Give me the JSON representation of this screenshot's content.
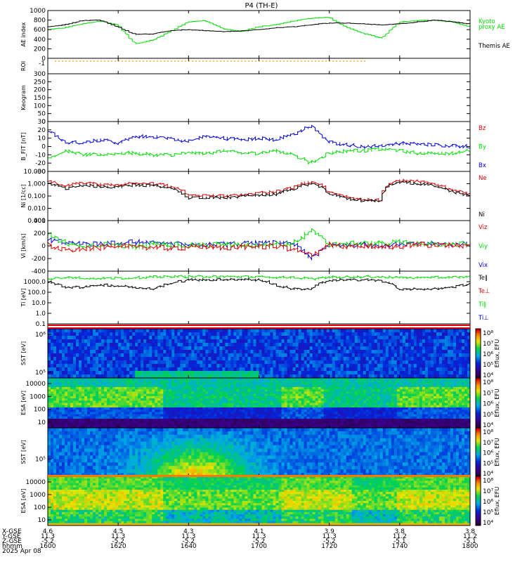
{
  "title": "P4 (TH-E)",
  "colors": {
    "black": "#000000",
    "green": "#00dd00",
    "blue": "#0000dd",
    "red": "#dd0000",
    "orange": "#ff9900"
  },
  "time_axis": {
    "row_labels": [
      "X-GSE",
      "Y-GSE",
      "Z-GSE",
      "hhmm",
      "2025 Apr 08"
    ],
    "ticks": [
      {
        "time": "1600",
        "x_gse": "4.6",
        "y_gse": "11.3",
        "z_gse": "-5.2"
      },
      {
        "time": "1620",
        "x_gse": "4.5",
        "y_gse": "11.3",
        "z_gse": "-5.2"
      },
      {
        "time": "1640",
        "x_gse": "4.3",
        "y_gse": "11.3",
        "z_gse": "-5.2"
      },
      {
        "time": "1700",
        "x_gse": "4.1",
        "y_gse": "11.3",
        "z_gse": "-5.2"
      },
      {
        "time": "1720",
        "x_gse": "3.9",
        "y_gse": "11.3",
        "z_gse": "-5.2"
      },
      {
        "time": "1740",
        "x_gse": "3.8",
        "y_gse": "11.2",
        "z_gse": "-5.1"
      },
      {
        "time": "1800",
        "x_gse": "3.8",
        "y_gse": "11.2",
        "z_gse": "-5.1"
      }
    ]
  },
  "chart_data": [
    {
      "type": "line",
      "panel": "ae",
      "ylabel": "AE index",
      "ylim": [
        0,
        1000
      ],
      "yticks": [
        "0",
        "200",
        "400",
        "600",
        "800",
        "1000"
      ],
      "legend": [
        {
          "label": "Kyoto",
          "color": "#00dd00"
        },
        {
          "label": "proxy AE",
          "color": "#00dd00"
        },
        {
          "label": "Themis AE",
          "color": "#000000"
        }
      ],
      "x": [
        1600,
        1605,
        1610,
        1615,
        1620,
        1625,
        1630,
        1635,
        1640,
        1645,
        1650,
        1655,
        1700,
        1705,
        1710,
        1715,
        1720,
        1725,
        1730,
        1735,
        1740,
        1745,
        1750,
        1755,
        1800
      ],
      "series": [
        {
          "name": "Kyoto",
          "color": "#00dd00",
          "values": [
            600,
            640,
            720,
            780,
            700,
            300,
            380,
            560,
            760,
            790,
            620,
            560,
            660,
            700,
            780,
            840,
            860,
            650,
            520,
            420,
            760,
            790,
            800,
            760,
            660
          ]
        },
        {
          "name": "Themis AE",
          "color": "#000000",
          "values": [
            660,
            700,
            790,
            800,
            660,
            500,
            510,
            580,
            600,
            580,
            560,
            570,
            600,
            640,
            660,
            700,
            740,
            740,
            720,
            700,
            720,
            760,
            800,
            770,
            720
          ]
        }
      ]
    },
    {
      "type": "line",
      "panel": "roi",
      "ylabel": "ROI",
      "yticks": [],
      "series": [
        {
          "name": "",
          "color": "#ff9900",
          "values": []
        }
      ]
    },
    {
      "type": "bar",
      "panel": "keogram",
      "ylabel": "Keogram",
      "ylim": [
        0,
        300
      ],
      "yticks": [
        "0",
        "50",
        "100",
        "150",
        "200",
        "250",
        "300"
      ],
      "series": []
    },
    {
      "type": "line",
      "panel": "bfield",
      "ylabel": "B_FIT [nT]",
      "ylim": [
        -30,
        30
      ],
      "yticks": [
        "-30",
        "-20",
        "-10",
        "0",
        "10",
        "20",
        "30"
      ],
      "legend": [
        {
          "label": "Bz",
          "color": "#dd0000"
        },
        {
          "label": "By",
          "color": "#00dd00"
        },
        {
          "label": "Bx",
          "color": "#0000dd"
        }
      ],
      "x": [
        1600,
        1605,
        1610,
        1615,
        1620,
        1625,
        1630,
        1635,
        1640,
        1645,
        1650,
        1655,
        1700,
        1705,
        1710,
        1715,
        1720,
        1725,
        1730,
        1735,
        1740,
        1745,
        1750,
        1755,
        1800
      ],
      "series": [
        {
          "name": "Bx",
          "color": "#0000dd",
          "values": [
            20,
            5,
            5,
            8,
            4,
            12,
            12,
            10,
            6,
            12,
            10,
            8,
            10,
            8,
            15,
            25,
            5,
            2,
            0,
            1,
            4,
            3,
            2,
            1,
            0
          ]
        },
        {
          "name": "By",
          "color": "#00dd00",
          "values": [
            -15,
            -5,
            -10,
            -10,
            -8,
            -8,
            -10,
            -10,
            -8,
            -8,
            -5,
            -8,
            -8,
            -5,
            -10,
            -20,
            -8,
            -5,
            -5,
            -3,
            -5,
            -8,
            -8,
            -8,
            -5
          ]
        }
      ]
    },
    {
      "type": "line",
      "panel": "density",
      "ylabel": "Ni [1/cc]",
      "ylim": [
        0.001,
        10
      ],
      "yscale": "log",
      "yticks": [
        "0.001",
        "0.010",
        "0.100",
        "1.000",
        "10.000"
      ],
      "legend": [
        {
          "label": "Ne",
          "color": "#dd0000"
        },
        {
          "label": "Ni",
          "color": "#000000"
        }
      ],
      "x": [
        1600,
        1605,
        1610,
        1615,
        1620,
        1625,
        1630,
        1635,
        1640,
        1645,
        1650,
        1655,
        1700,
        1705,
        1710,
        1715,
        1720,
        1725,
        1730,
        1735,
        1740,
        1745,
        1750,
        1755,
        1800
      ],
      "series": [
        {
          "name": "Ne",
          "color": "#dd0000",
          "values": [
            1.5,
            0.6,
            1.2,
            0.9,
            0.8,
            1.2,
            1.0,
            0.6,
            0.1,
            0.12,
            0.1,
            0.12,
            0.2,
            0.2,
            0.5,
            1.5,
            0.2,
            0.08,
            0.05,
            0.05,
            2.0,
            1.5,
            1.0,
            0.3,
            0.15
          ]
        },
        {
          "name": "Ni",
          "color": "#000000",
          "values": [
            1.0,
            0.4,
            0.8,
            0.6,
            0.5,
            0.8,
            0.7,
            0.4,
            0.07,
            0.08,
            0.07,
            0.09,
            0.12,
            0.14,
            0.35,
            1.0,
            0.14,
            0.06,
            0.04,
            0.04,
            1.4,
            1.0,
            0.7,
            0.2,
            0.1
          ]
        }
      ]
    },
    {
      "type": "line",
      "panel": "velocity",
      "ylabel": "Vi [km/s]",
      "ylim": [
        -400,
        400
      ],
      "yticks": [
        "-400",
        "-200",
        "0",
        "200",
        "400"
      ],
      "legend": [
        {
          "label": "Viz",
          "color": "#dd0000"
        },
        {
          "label": "Viy",
          "color": "#00dd00"
        },
        {
          "label": "Vix",
          "color": "#0000dd"
        }
      ],
      "x": [
        1600,
        1605,
        1610,
        1615,
        1620,
        1625,
        1630,
        1635,
        1640,
        1645,
        1650,
        1655,
        1700,
        1705,
        1710,
        1715,
        1720,
        1725,
        1730,
        1735,
        1740,
        1745,
        1750,
        1755,
        1800
      ],
      "series": [
        {
          "name": "Vix",
          "color": "#0000dd",
          "values": [
            100,
            50,
            20,
            30,
            40,
            60,
            40,
            20,
            30,
            10,
            20,
            30,
            40,
            40,
            30,
            -200,
            20,
            10,
            20,
            0,
            40,
            20,
            30,
            20,
            30
          ]
        },
        {
          "name": "Viy",
          "color": "#00dd00",
          "values": [
            200,
            50,
            -30,
            20,
            10,
            -20,
            30,
            20,
            0,
            20,
            20,
            10,
            10,
            20,
            50,
            250,
            20,
            30,
            40,
            40,
            60,
            40,
            20,
            30,
            20
          ]
        },
        {
          "name": "Viz",
          "color": "#dd0000",
          "values": [
            20,
            -80,
            -50,
            -30,
            20,
            -30,
            -20,
            -40,
            -20,
            -10,
            -30,
            -10,
            -20,
            0,
            -60,
            -150,
            20,
            -20,
            0,
            -10,
            -20,
            20,
            10,
            10,
            0
          ]
        }
      ]
    },
    {
      "type": "line",
      "panel": "temperature",
      "ylabel": "Ti [eV]",
      "ylim": [
        0.1,
        10000
      ],
      "yscale": "log",
      "yticks": [
        "0.1",
        "1.0",
        "10.0",
        "100.0",
        "1000.0"
      ],
      "legend": [
        {
          "label": "Te∥",
          "color": "#000000"
        },
        {
          "label": "Te⊥",
          "color": "#dd0000"
        },
        {
          "label": "Ti∥",
          "color": "#00dd00"
        },
        {
          "label": "Ti⊥",
          "color": "#0000dd"
        }
      ],
      "x": [
        1600,
        1605,
        1610,
        1615,
        1620,
        1625,
        1630,
        1635,
        1640,
        1645,
        1650,
        1655,
        1700,
        1705,
        1710,
        1715,
        1720,
        1725,
        1730,
        1735,
        1740,
        1745,
        1750,
        1755,
        1800
      ],
      "series": [
        {
          "name": "Ti∥",
          "color": "#00dd00",
          "values": [
            1800,
            2500,
            2300,
            2000,
            2200,
            2500,
            2800,
            3000,
            3200,
            3000,
            3200,
            3000,
            2800,
            2600,
            2500,
            1800,
            2600,
            2800,
            3000,
            3000,
            2400,
            2400,
            2500,
            2600,
            2800
          ]
        },
        {
          "name": "Te∥",
          "color": "#000000",
          "values": [
            1000,
            300,
            300,
            500,
            400,
            300,
            200,
            600,
            1500,
            1500,
            1700,
            1600,
            1500,
            400,
            200,
            200,
            1200,
            1500,
            1500,
            1200,
            150,
            200,
            200,
            300,
            600
          ]
        }
      ]
    },
    {
      "type": "heatmap",
      "panel": "sst_ion",
      "ylabel": "SST [eV]",
      "yticks": [
        "10⁵",
        "10⁶"
      ],
      "colorbar": {
        "label": "Eflux, EFU",
        "ticks": [
          "10⁴",
          "10⁵",
          "10⁶",
          "10⁷",
          "10⁸"
        ]
      }
    },
    {
      "type": "heatmap",
      "panel": "esa_ion",
      "ylabel": "ESA [eV]",
      "yticks": [
        "10",
        "100",
        "1000",
        "10000"
      ],
      "colorbar": {
        "label": "Eflux, EFU",
        "ticks": [
          "10⁴",
          "10⁵",
          "10⁶",
          "10⁷",
          "10⁸"
        ]
      }
    },
    {
      "type": "heatmap",
      "panel": "sst_elec",
      "ylabel": "SST [eV]",
      "yticks": [
        "10⁵"
      ],
      "colorbar": {
        "label": "Eflux, EFU",
        "ticks": [
          "10⁴",
          "10⁵",
          "10⁶",
          "10⁷",
          "10⁸"
        ]
      }
    },
    {
      "type": "heatmap",
      "panel": "esa_elec",
      "ylabel": "ESA [eV]",
      "yticks": [
        "10",
        "100",
        "1000",
        "10000"
      ],
      "colorbar": {
        "label": "Eflux, EFU",
        "ticks": [
          "10⁴",
          "10⁵",
          "10⁶",
          "10⁷",
          "10⁸"
        ]
      }
    }
  ]
}
